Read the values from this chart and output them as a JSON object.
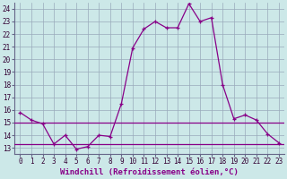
{
  "xlabel": "Windchill (Refroidissement éolien,°C)",
  "x_values": [
    0,
    1,
    2,
    3,
    4,
    5,
    6,
    7,
    8,
    9,
    10,
    11,
    12,
    13,
    14,
    15,
    16,
    17,
    18,
    19,
    20,
    21,
    22,
    23
  ],
  "temp_line": [
    15.8,
    15.2,
    14.9,
    13.3,
    14.0,
    12.9,
    13.1,
    14.0,
    13.9,
    16.5,
    20.9,
    22.4,
    23.0,
    22.5,
    22.5,
    24.4,
    23.0,
    23.3,
    18.0,
    15.3,
    15.6,
    15.2,
    14.1,
    13.4
  ],
  "hline1": 15.0,
  "hline2": 13.3,
  "line_color": "#880088",
  "bg_color": "#cce8e8",
  "grid_color": "#99aabb",
  "ylim": [
    12.5,
    24.5
  ],
  "yticks": [
    13,
    14,
    15,
    16,
    17,
    18,
    19,
    20,
    21,
    22,
    23,
    24
  ],
  "xlabel_fontsize": 6.5,
  "tick_fontsize": 5.5
}
